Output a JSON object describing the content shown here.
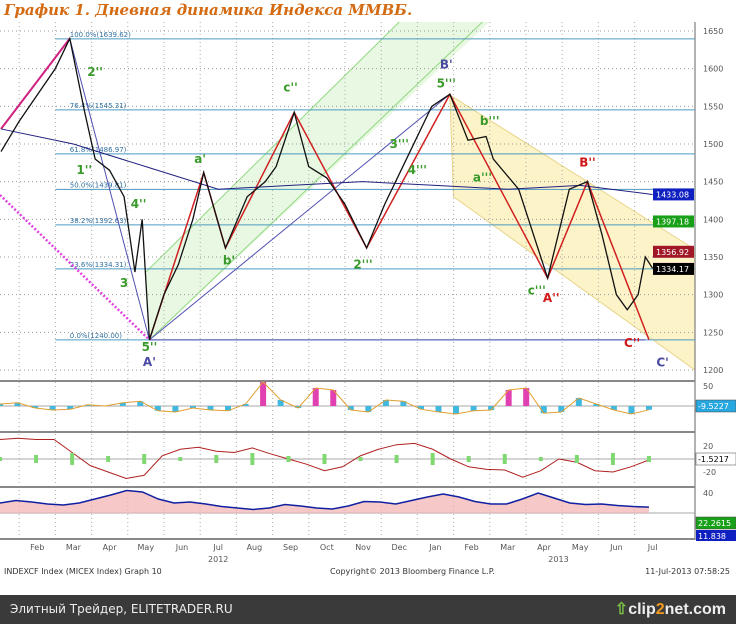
{
  "title": "График 1.   Дневная динамика Индекса ММВБ.",
  "footer": {
    "left": "INDEXCF Index (MICEX Index) Graph 10",
    "center": "Copyright© 2013 Bloomberg Finance L.P.",
    "right": "11-Jul-2013 07:58:25"
  },
  "watermark": {
    "left": "Элитный Трейдер, ELITETRADER.RU",
    "brand_a": "clip",
    "brand_b": "2",
    "brand_c": "net.com"
  },
  "chart_data": {
    "type": "line",
    "title": "График 1. Дневная динамика Индекса ММВБ.",
    "x_unit": "months since Jan 2012",
    "x_ticks": [
      {
        "m": 1,
        "label": "Feb"
      },
      {
        "m": 2,
        "label": "Mar"
      },
      {
        "m": 3,
        "label": "Apr"
      },
      {
        "m": 4,
        "label": "May"
      },
      {
        "m": 5,
        "label": "Jun"
      },
      {
        "m": 6,
        "label": "Jul"
      },
      {
        "m": 7,
        "label": "Aug"
      },
      {
        "m": 8,
        "label": "Sep"
      },
      {
        "m": 9,
        "label": "Oct"
      },
      {
        "m": 10,
        "label": "Nov"
      },
      {
        "m": 11,
        "label": "Dec"
      },
      {
        "m": 12,
        "label": "Jan"
      },
      {
        "m": 13,
        "label": "Feb"
      },
      {
        "m": 14,
        "label": "Mar"
      },
      {
        "m": 15,
        "label": "Apr"
      },
      {
        "m": 16,
        "label": "May"
      },
      {
        "m": 17,
        "label": "Jun"
      },
      {
        "m": 18,
        "label": "Jul"
      }
    ],
    "year_labels": [
      {
        "m": 6,
        "label": "2012"
      },
      {
        "m": 15.4,
        "label": "2013"
      }
    ],
    "ylim": [
      1200,
      1650
    ],
    "y_ticks": [
      1650,
      1600,
      1550,
      1500,
      1450,
      1400,
      1350,
      1300,
      1250,
      1200
    ],
    "price": [
      [
        0,
        1490
      ],
      [
        0.5,
        1530
      ],
      [
        1,
        1565
      ],
      [
        1.5,
        1600
      ],
      [
        1.9,
        1640
      ],
      [
        2.3,
        1545
      ],
      [
        2.6,
        1480
      ],
      [
        3,
        1465
      ],
      [
        3.4,
        1430
      ],
      [
        3.7,
        1330
      ],
      [
        3.9,
        1400
      ],
      [
        4.1,
        1240
      ],
      [
        4.5,
        1300
      ],
      [
        4.9,
        1340
      ],
      [
        5.3,
        1400
      ],
      [
        5.6,
        1462
      ],
      [
        6.2,
        1362
      ],
      [
        6.8,
        1430
      ],
      [
        7.3,
        1450
      ],
      [
        7.6,
        1470
      ],
      [
        8.1,
        1542
      ],
      [
        8.5,
        1470
      ],
      [
        9,
        1455
      ],
      [
        9.5,
        1420
      ],
      [
        10.1,
        1362
      ],
      [
        10.6,
        1420
      ],
      [
        11.2,
        1480
      ],
      [
        11.9,
        1550
      ],
      [
        12.4,
        1566
      ],
      [
        12.9,
        1505
      ],
      [
        13.4,
        1510
      ],
      [
        13.6,
        1480
      ],
      [
        14.3,
        1440
      ],
      [
        15.1,
        1322
      ],
      [
        15.7,
        1440
      ],
      [
        16.2,
        1450
      ],
      [
        16.6,
        1380
      ],
      [
        17,
        1300
      ],
      [
        17.3,
        1280
      ],
      [
        17.6,
        1300
      ],
      [
        17.8,
        1350
      ],
      [
        18,
        1335
      ]
    ],
    "ma_long": [
      [
        0,
        1520
      ],
      [
        2,
        1500
      ],
      [
        4,
        1470
      ],
      [
        6,
        1440
      ],
      [
        8,
        1445
      ],
      [
        10,
        1450
      ],
      [
        12,
        1445
      ],
      [
        14,
        1440
      ],
      [
        16,
        1445
      ],
      [
        18,
        1433
      ]
    ],
    "fib_levels": [
      {
        "label": "100.0%(1639.62)",
        "value": 1639.62
      },
      {
        "label": "76.4%(1545.31)",
        "value": 1545.31
      },
      {
        "label": "61.8%(1486.97)",
        "value": 1486.97
      },
      {
        "label": "50.0%(1439.81)",
        "value": 1439.81
      },
      {
        "label": "38.2%(1392.63)",
        "value": 1392.63
      },
      {
        "label": "23.6%(1334.31)",
        "value": 1334.31
      },
      {
        "label": "0.0%(1240.00)",
        "value": 1240.0
      }
    ],
    "badges": [
      {
        "label": "1433.08",
        "value": 1433.08,
        "color": "#1020c0"
      },
      {
        "label": "1397.18",
        "value": 1397.18,
        "color": "#18a018"
      },
      {
        "label": "1356.92",
        "value": 1356.92,
        "color": "#a01828"
      },
      {
        "label": "1334.17",
        "value": 1334.17,
        "color": "#000000"
      }
    ],
    "wave_labels": [
      {
        "t": "2''",
        "m": 2.6,
        "p": 1590,
        "c": "#3a9a2a"
      },
      {
        "t": "1''",
        "m": 2.3,
        "p": 1460,
        "c": "#3a9a2a"
      },
      {
        "t": "4''",
        "m": 3.8,
        "p": 1415,
        "c": "#3a9a2a"
      },
      {
        "t": "3",
        "m": 3.4,
        "p": 1310,
        "c": "#3a9a2a"
      },
      {
        "t": "5''",
        "m": 4.1,
        "p": 1225,
        "c": "#3a9a2a"
      },
      {
        "t": "A'",
        "m": 4.1,
        "p": 1205,
        "c": "#4a4aa0"
      },
      {
        "t": "a'",
        "m": 5.5,
        "p": 1475,
        "c": "#3a9a2a"
      },
      {
        "t": "b'",
        "m": 6.3,
        "p": 1340,
        "c": "#3a9a2a"
      },
      {
        "t": "c''",
        "m": 8.0,
        "p": 1570,
        "c": "#3a9a2a"
      },
      {
        "t": "2'''",
        "m": 10.0,
        "p": 1335,
        "c": "#3a9a2a"
      },
      {
        "t": "3'''",
        "m": 11.0,
        "p": 1495,
        "c": "#3a9a2a"
      },
      {
        "t": "4'''",
        "m": 11.5,
        "p": 1460,
        "c": "#3a9a2a"
      },
      {
        "t": "B'",
        "m": 12.3,
        "p": 1600,
        "c": "#4a4aa0"
      },
      {
        "t": "5'''",
        "m": 12.3,
        "p": 1575,
        "c": "#3a9a2a"
      },
      {
        "t": "b'''",
        "m": 13.5,
        "p": 1525,
        "c": "#3a9a2a"
      },
      {
        "t": "a'''",
        "m": 13.3,
        "p": 1450,
        "c": "#3a9a2a"
      },
      {
        "t": "c'''",
        "m": 14.8,
        "p": 1300,
        "c": "#3a9a2a"
      },
      {
        "t": "A''",
        "m": 15.2,
        "p": 1290,
        "c": "#d01818"
      },
      {
        "t": "B''",
        "m": 16.2,
        "p": 1470,
        "c": "#d01818"
      },
      {
        "t": "C''",
        "m": 17.6,
        "p": 1225,
        "c": "#d01818"
      },
      {
        "t": "C'",
        "m": 18.0,
        "p": 1215,
        "c": "#4a4aa0"
      }
    ],
    "panels": [
      {
        "name": "momentum",
        "ticks": [
          {
            "v": 50,
            "label": "50"
          }
        ],
        "last": "-9.5227",
        "last_color": "#28a8e0",
        "values": [
          5,
          8,
          -5,
          -10,
          -8,
          3,
          0,
          8,
          12,
          -12,
          -15,
          -5,
          -10,
          -12,
          5,
          60,
          15,
          -5,
          45,
          40,
          -10,
          -15,
          15,
          12,
          -8,
          -15,
          -20,
          -12,
          -10,
          40,
          45,
          -18,
          -15,
          20,
          5,
          -10,
          -20,
          -9.5
        ]
      },
      {
        "name": "oscillator",
        "ticks": [
          {
            "v": 20,
            "label": "20"
          },
          {
            "v": -20,
            "label": "-20"
          }
        ],
        "last": "-1.5217",
        "last_color": "#ffffff",
        "values": [
          30,
          32,
          30,
          30,
          10,
          -10,
          -20,
          -30,
          -25,
          5,
          15,
          18,
          12,
          10,
          17,
          8,
          0,
          -8,
          -18,
          -12,
          5,
          15,
          22,
          24,
          15,
          0,
          -12,
          -16,
          -17,
          -28,
          -18,
          0,
          -5,
          -18,
          -20,
          -12,
          -1.5
        ]
      },
      {
        "name": "directional",
        "ticks": [
          {
            "v": 40,
            "label": "40"
          }
        ],
        "last": "22.2615",
        "last2": "11.838",
        "last_color": "#18a018",
        "values": [
          20,
          25,
          22,
          18,
          16,
          20,
          28,
          36,
          45,
          42,
          28,
          20,
          22,
          18,
          13,
          10,
          7,
          10,
          17,
          14,
          10,
          8,
          14,
          23,
          22,
          18,
          25,
          32,
          38,
          32,
          23,
          18,
          18,
          28,
          40,
          30,
          20,
          17,
          18,
          15,
          13,
          11.8
        ]
      }
    ]
  }
}
